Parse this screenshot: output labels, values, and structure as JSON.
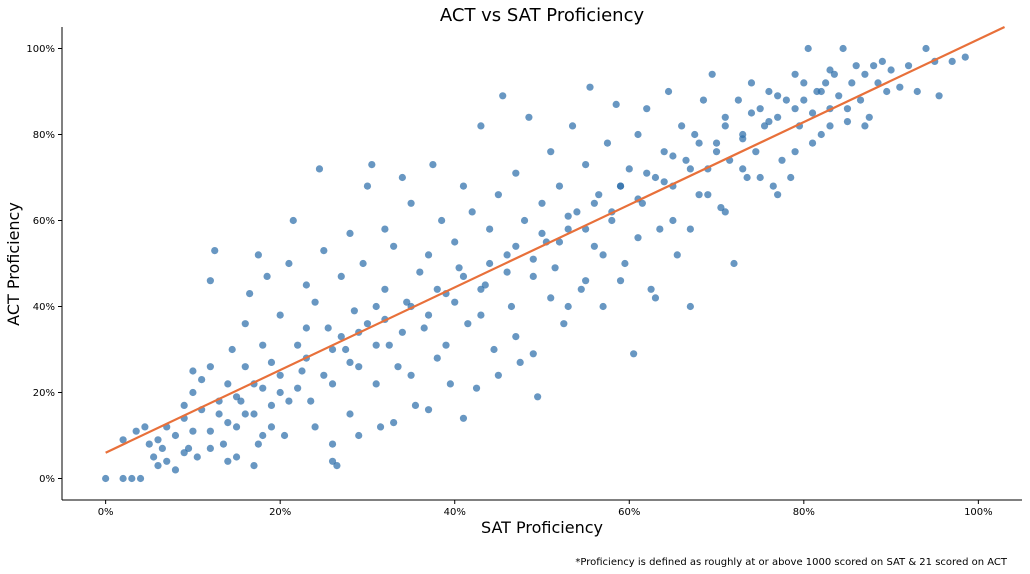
{
  "chart_data": {
    "type": "scatter",
    "title": "ACT vs SAT Proficiency",
    "xlabel": "SAT Proficiency",
    "ylabel": "ACT Proficiency",
    "xlim": [
      -0.05,
      1.05
    ],
    "ylim": [
      -0.05,
      1.05
    ],
    "xticks": [
      0,
      0.2,
      0.4,
      0.6,
      0.8,
      1.0
    ],
    "xtick_labels": [
      "0%",
      "20%",
      "40%",
      "60%",
      "80%",
      "100%"
    ],
    "yticks": [
      0,
      0.2,
      0.4,
      0.6,
      0.8,
      1.0
    ],
    "ytick_labels": [
      "0%",
      "20%",
      "40%",
      "60%",
      "80%",
      "100%"
    ],
    "grid": false,
    "point_color": "#2e6fab",
    "line_color": "#e8703a",
    "trendline": {
      "x": [
        0,
        1.03
      ],
      "y": [
        0.06,
        1.05
      ]
    },
    "series": [
      {
        "points": [
          [
            0.0,
            0.0
          ],
          [
            0.02,
            0.0
          ],
          [
            0.03,
            0.0
          ],
          [
            0.04,
            0.0
          ],
          [
            0.02,
            0.09
          ],
          [
            0.035,
            0.11
          ],
          [
            0.045,
            0.12
          ],
          [
            0.05,
            0.08
          ],
          [
            0.055,
            0.05
          ],
          [
            0.06,
            0.03
          ],
          [
            0.065,
            0.07
          ],
          [
            0.07,
            0.12
          ],
          [
            0.08,
            0.1
          ],
          [
            0.09,
            0.14
          ],
          [
            0.095,
            0.07
          ],
          [
            0.1,
            0.2
          ],
          [
            0.1,
            0.25
          ],
          [
            0.105,
            0.05
          ],
          [
            0.11,
            0.16
          ],
          [
            0.12,
            0.11
          ],
          [
            0.12,
            0.26
          ],
          [
            0.12,
            0.46
          ],
          [
            0.125,
            0.53
          ],
          [
            0.13,
            0.18
          ],
          [
            0.135,
            0.08
          ],
          [
            0.14,
            0.22
          ],
          [
            0.145,
            0.3
          ],
          [
            0.15,
            0.12
          ],
          [
            0.15,
            0.05
          ],
          [
            0.155,
            0.18
          ],
          [
            0.16,
            0.36
          ],
          [
            0.16,
            0.26
          ],
          [
            0.165,
            0.43
          ],
          [
            0.17,
            0.15
          ],
          [
            0.17,
            0.22
          ],
          [
            0.175,
            0.52
          ],
          [
            0.175,
            0.08
          ],
          [
            0.18,
            0.31
          ],
          [
            0.185,
            0.47
          ],
          [
            0.19,
            0.12
          ],
          [
            0.19,
            0.27
          ],
          [
            0.2,
            0.38
          ],
          [
            0.2,
            0.2
          ],
          [
            0.205,
            0.1
          ],
          [
            0.21,
            0.5
          ],
          [
            0.215,
            0.6
          ],
          [
            0.22,
            0.31
          ],
          [
            0.225,
            0.25
          ],
          [
            0.23,
            0.45
          ],
          [
            0.235,
            0.18
          ],
          [
            0.24,
            0.41
          ],
          [
            0.245,
            0.72
          ],
          [
            0.25,
            0.53
          ],
          [
            0.255,
            0.35
          ],
          [
            0.26,
            0.22
          ],
          [
            0.26,
            0.08
          ],
          [
            0.265,
            0.03
          ],
          [
            0.27,
            0.47
          ],
          [
            0.275,
            0.3
          ],
          [
            0.28,
            0.57
          ],
          [
            0.28,
            0.15
          ],
          [
            0.285,
            0.39
          ],
          [
            0.29,
            0.26
          ],
          [
            0.295,
            0.5
          ],
          [
            0.3,
            0.68
          ],
          [
            0.3,
            0.36
          ],
          [
            0.305,
            0.73
          ],
          [
            0.31,
            0.22
          ],
          [
            0.315,
            0.12
          ],
          [
            0.32,
            0.44
          ],
          [
            0.32,
            0.58
          ],
          [
            0.325,
            0.31
          ],
          [
            0.33,
            0.54
          ],
          [
            0.335,
            0.26
          ],
          [
            0.34,
            0.7
          ],
          [
            0.345,
            0.41
          ],
          [
            0.35,
            0.64
          ],
          [
            0.355,
            0.17
          ],
          [
            0.36,
            0.48
          ],
          [
            0.365,
            0.35
          ],
          [
            0.37,
            0.52
          ],
          [
            0.375,
            0.73
          ],
          [
            0.38,
            0.28
          ],
          [
            0.385,
            0.6
          ],
          [
            0.39,
            0.43
          ],
          [
            0.395,
            0.22
          ],
          [
            0.4,
            0.55
          ],
          [
            0.405,
            0.49
          ],
          [
            0.41,
            0.68
          ],
          [
            0.415,
            0.36
          ],
          [
            0.42,
            0.62
          ],
          [
            0.425,
            0.21
          ],
          [
            0.43,
            0.82
          ],
          [
            0.435,
            0.45
          ],
          [
            0.44,
            0.58
          ],
          [
            0.445,
            0.3
          ],
          [
            0.45,
            0.66
          ],
          [
            0.455,
            0.89
          ],
          [
            0.46,
            0.52
          ],
          [
            0.465,
            0.4
          ],
          [
            0.47,
            0.71
          ],
          [
            0.475,
            0.27
          ],
          [
            0.48,
            0.6
          ],
          [
            0.485,
            0.84
          ],
          [
            0.49,
            0.47
          ],
          [
            0.495,
            0.19
          ],
          [
            0.5,
            0.64
          ],
          [
            0.505,
            0.55
          ],
          [
            0.51,
            0.76
          ],
          [
            0.515,
            0.49
          ],
          [
            0.52,
            0.68
          ],
          [
            0.525,
            0.36
          ],
          [
            0.53,
            0.58
          ],
          [
            0.535,
            0.82
          ],
          [
            0.54,
            0.62
          ],
          [
            0.545,
            0.44
          ],
          [
            0.55,
            0.73
          ],
          [
            0.555,
            0.91
          ],
          [
            0.56,
            0.54
          ],
          [
            0.565,
            0.66
          ],
          [
            0.57,
            0.4
          ],
          [
            0.575,
            0.78
          ],
          [
            0.58,
            0.6
          ],
          [
            0.585,
            0.87
          ],
          [
            0.59,
            0.68
          ],
          [
            0.595,
            0.5
          ],
          [
            0.6,
            0.72
          ],
          [
            0.605,
            0.29
          ],
          [
            0.61,
            0.8
          ],
          [
            0.615,
            0.64
          ],
          [
            0.62,
            0.86
          ],
          [
            0.625,
            0.44
          ],
          [
            0.63,
            0.7
          ],
          [
            0.635,
            0.58
          ],
          [
            0.64,
            0.76
          ],
          [
            0.645,
            0.9
          ],
          [
            0.65,
            0.68
          ],
          [
            0.655,
            0.52
          ],
          [
            0.66,
            0.82
          ],
          [
            0.665,
            0.74
          ],
          [
            0.67,
            0.4
          ],
          [
            0.675,
            0.8
          ],
          [
            0.68,
            0.66
          ],
          [
            0.685,
            0.88
          ],
          [
            0.69,
            0.72
          ],
          [
            0.695,
            0.94
          ],
          [
            0.7,
            0.78
          ],
          [
            0.705,
            0.63
          ],
          [
            0.71,
            0.84
          ],
          [
            0.715,
            0.74
          ],
          [
            0.72,
            0.5
          ],
          [
            0.725,
            0.88
          ],
          [
            0.73,
            0.8
          ],
          [
            0.735,
            0.7
          ],
          [
            0.74,
            0.92
          ],
          [
            0.745,
            0.76
          ],
          [
            0.75,
            0.86
          ],
          [
            0.755,
            0.82
          ],
          [
            0.76,
            0.9
          ],
          [
            0.765,
            0.68
          ],
          [
            0.77,
            0.84
          ],
          [
            0.775,
            0.74
          ],
          [
            0.78,
            0.88
          ],
          [
            0.785,
            0.7
          ],
          [
            0.79,
            0.94
          ],
          [
            0.795,
            0.82
          ],
          [
            0.8,
            0.88
          ],
          [
            0.805,
            1.0
          ],
          [
            0.81,
            0.85
          ],
          [
            0.815,
            0.9
          ],
          [
            0.82,
            0.8
          ],
          [
            0.825,
            0.92
          ],
          [
            0.83,
            0.86
          ],
          [
            0.835,
            0.94
          ],
          [
            0.84,
            0.89
          ],
          [
            0.845,
            1.0
          ],
          [
            0.85,
            0.83
          ],
          [
            0.855,
            0.92
          ],
          [
            0.86,
            0.96
          ],
          [
            0.865,
            0.88
          ],
          [
            0.87,
            0.94
          ],
          [
            0.875,
            0.84
          ],
          [
            0.88,
            0.96
          ],
          [
            0.885,
            0.92
          ],
          [
            0.89,
            0.97
          ],
          [
            0.895,
            0.9
          ],
          [
            0.9,
            0.95
          ],
          [
            0.91,
            0.91
          ],
          [
            0.92,
            0.96
          ],
          [
            0.93,
            0.9
          ],
          [
            0.94,
            1.0
          ],
          [
            0.95,
            0.97
          ],
          [
            0.955,
            0.89
          ],
          [
            0.97,
            0.97
          ],
          [
            0.985,
            0.98
          ],
          [
            0.08,
            0.02
          ],
          [
            0.09,
            0.06
          ],
          [
            0.11,
            0.23
          ],
          [
            0.13,
            0.15
          ],
          [
            0.14,
            0.04
          ],
          [
            0.17,
            0.03
          ],
          [
            0.18,
            0.1
          ],
          [
            0.21,
            0.18
          ],
          [
            0.23,
            0.35
          ],
          [
            0.24,
            0.12
          ],
          [
            0.26,
            0.04
          ],
          [
            0.27,
            0.33
          ],
          [
            0.29,
            0.1
          ],
          [
            0.31,
            0.4
          ],
          [
            0.33,
            0.13
          ],
          [
            0.35,
            0.24
          ],
          [
            0.37,
            0.16
          ],
          [
            0.39,
            0.31
          ],
          [
            0.41,
            0.14
          ],
          [
            0.43,
            0.38
          ],
          [
            0.45,
            0.24
          ],
          [
            0.47,
            0.33
          ],
          [
            0.49,
            0.29
          ],
          [
            0.51,
            0.42
          ],
          [
            0.53,
            0.4
          ],
          [
            0.55,
            0.46
          ],
          [
            0.57,
            0.52
          ],
          [
            0.59,
            0.46
          ],
          [
            0.61,
            0.56
          ],
          [
            0.63,
            0.42
          ],
          [
            0.65,
            0.6
          ],
          [
            0.67,
            0.58
          ],
          [
            0.69,
            0.66
          ],
          [
            0.71,
            0.62
          ],
          [
            0.73,
            0.72
          ],
          [
            0.75,
            0.7
          ],
          [
            0.77,
            0.66
          ],
          [
            0.79,
            0.76
          ],
          [
            0.81,
            0.78
          ],
          [
            0.83,
            0.82
          ],
          [
            0.85,
            0.86
          ],
          [
            0.87,
            0.82
          ],
          [
            0.06,
            0.09
          ],
          [
            0.07,
            0.04
          ],
          [
            0.09,
            0.17
          ],
          [
            0.1,
            0.11
          ],
          [
            0.12,
            0.07
          ],
          [
            0.14,
            0.13
          ],
          [
            0.15,
            0.19
          ],
          [
            0.16,
            0.15
          ],
          [
            0.18,
            0.21
          ],
          [
            0.19,
            0.17
          ],
          [
            0.2,
            0.24
          ],
          [
            0.22,
            0.21
          ],
          [
            0.23,
            0.28
          ],
          [
            0.25,
            0.24
          ],
          [
            0.26,
            0.3
          ],
          [
            0.28,
            0.27
          ],
          [
            0.29,
            0.34
          ],
          [
            0.31,
            0.31
          ],
          [
            0.32,
            0.37
          ],
          [
            0.34,
            0.34
          ],
          [
            0.35,
            0.4
          ],
          [
            0.37,
            0.38
          ],
          [
            0.38,
            0.44
          ],
          [
            0.4,
            0.41
          ],
          [
            0.41,
            0.47
          ],
          [
            0.43,
            0.44
          ],
          [
            0.44,
            0.5
          ],
          [
            0.46,
            0.48
          ],
          [
            0.47,
            0.54
          ],
          [
            0.49,
            0.51
          ],
          [
            0.5,
            0.57
          ],
          [
            0.52,
            0.55
          ],
          [
            0.53,
            0.61
          ],
          [
            0.55,
            0.58
          ],
          [
            0.56,
            0.64
          ],
          [
            0.58,
            0.62
          ],
          [
            0.59,
            0.68
          ],
          [
            0.61,
            0.65
          ],
          [
            0.62,
            0.71
          ],
          [
            0.64,
            0.69
          ],
          [
            0.65,
            0.75
          ],
          [
            0.67,
            0.72
          ],
          [
            0.68,
            0.78
          ],
          [
            0.7,
            0.76
          ],
          [
            0.71,
            0.82
          ],
          [
            0.73,
            0.79
          ],
          [
            0.74,
            0.85
          ],
          [
            0.76,
            0.83
          ],
          [
            0.77,
            0.89
          ],
          [
            0.79,
            0.86
          ],
          [
            0.8,
            0.92
          ],
          [
            0.82,
            0.9
          ],
          [
            0.83,
            0.95
          ]
        ]
      }
    ]
  },
  "footnote": "*Proficiency is defined as roughly at or above 1000 scored on SAT & 21 scored on ACT"
}
